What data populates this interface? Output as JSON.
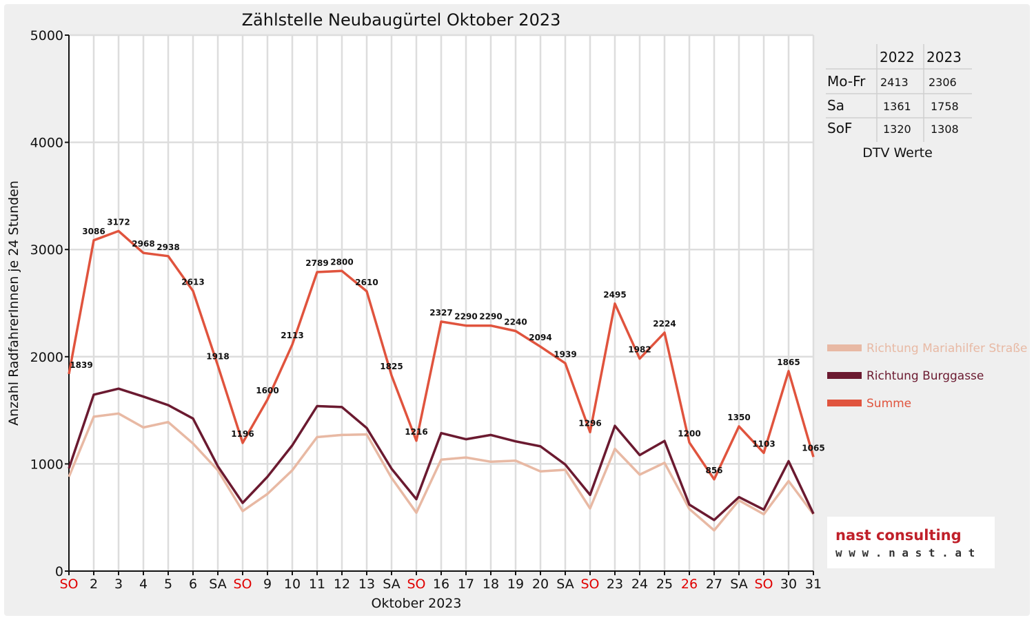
{
  "colors": {
    "background": "#efefef",
    "plot_background": "#ffffff",
    "grid": "#dddddd",
    "axis": "#111111",
    "sunday_label": "#e00000",
    "mariahilfer": "#e8b9a4",
    "burggasse": "#6b1a30",
    "summe": "#e0543e",
    "brand_red": "#c0202a"
  },
  "chart_data": {
    "type": "line",
    "title": "Zählstelle Neubaugürtel Oktober 2023",
    "xlabel": "Oktober 2023",
    "ylabel": "Anzahl RadfahrerInnen je 24 Stunden",
    "ylim": [
      0,
      5000
    ],
    "yticks": [
      "0",
      "1000",
      "2000",
      "3000",
      "4000",
      "5000"
    ],
    "grid": true,
    "legend_position": "right",
    "categories": [
      "SO",
      "2",
      "3",
      "4",
      "5",
      "6",
      "SA",
      "SO",
      "9",
      "10",
      "11",
      "12",
      "13",
      "SA",
      "SO",
      "16",
      "17",
      "18",
      "19",
      "20",
      "SA",
      "SO",
      "23",
      "24",
      "25",
      "26",
      "27",
      "SA",
      "SO",
      "30",
      "31"
    ],
    "red_categories": [
      0,
      7,
      14,
      21,
      25,
      28
    ],
    "series": [
      {
        "name": "Richtung Mariahilfer Straße",
        "color": "#e8b9a4",
        "values": [
          880,
          1440,
          1470,
          1340,
          1390,
          1190,
          940,
          560,
          720,
          940,
          1250,
          1270,
          1275,
          870,
          545,
          1040,
          1060,
          1020,
          1030,
          930,
          945,
          585,
          1140,
          900,
          1010,
          580,
          380,
          660,
          530,
          840,
          530
        ]
      },
      {
        "name": "Richtung Burggasse",
        "color": "#6b1a30",
        "values": [
          959,
          1646,
          1702,
          1628,
          1548,
          1423,
          978,
          636,
          880,
          1173,
          1539,
          1530,
          1335,
          955,
          671,
          1287,
          1230,
          1270,
          1210,
          1164,
          994,
          711,
          1355,
          1082,
          1214,
          620,
          476,
          690,
          573,
          1025,
          535
        ]
      },
      {
        "name": "Summe",
        "color": "#e0543e",
        "values": [
          1839,
          3086,
          3172,
          2968,
          2938,
          2613,
          1918,
          1196,
          1600,
          2113,
          2789,
          2800,
          2610,
          1825,
          1216,
          2327,
          2290,
          2290,
          2240,
          2094,
          1939,
          1296,
          2495,
          1982,
          2224,
          1200,
          856,
          1350,
          1103,
          1865,
          1065
        ]
      }
    ],
    "data_labels": [
      "1839",
      "3086",
      "3172",
      "2968",
      "2938",
      "2613",
      "1918",
      "1196",
      "1600",
      "2113",
      "2789",
      "2800",
      "2610",
      "1825",
      "1216",
      "2327",
      "2290",
      "2290",
      "2240",
      "2094",
      "1939",
      "1296",
      "2495",
      "1982",
      "2224",
      "1200",
      "856",
      "1350",
      "1103",
      "1865",
      "1065"
    ]
  },
  "dtv_table": {
    "headers": [
      "2022",
      "2023"
    ],
    "rows": [
      {
        "label": "Mo-Fr",
        "v2022": "2413",
        "v2023": "2306"
      },
      {
        "label": "Sa",
        "v2022": "1361",
        "v2023": "1758"
      },
      {
        "label": "SoF",
        "v2022": "1320",
        "v2023": "1308"
      }
    ],
    "caption": "DTV Werte"
  },
  "branding": {
    "logo_line1": "nast consulting",
    "logo_line2": "w w w . n a s t . a t"
  }
}
